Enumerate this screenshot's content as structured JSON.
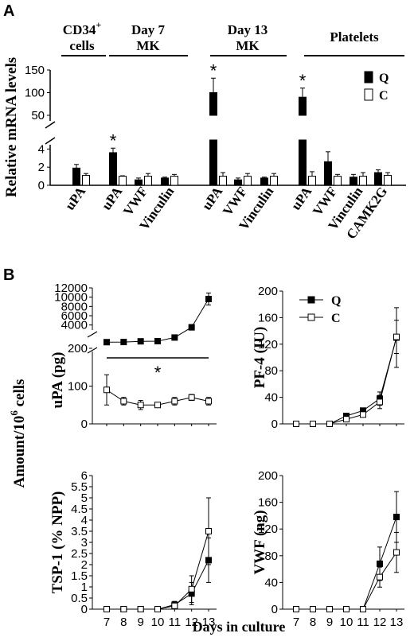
{
  "panel_a": {
    "letter": "A",
    "groups": [
      {
        "line1": "CD34",
        "sup": "+",
        "line2": "cells"
      },
      {
        "line1": "Day 7",
        "sup": "",
        "line2": "MK"
      },
      {
        "line1": "Day 13",
        "sup": "",
        "line2": "MK"
      },
      {
        "line1": "Platelets",
        "sup": "",
        "line2": ""
      }
    ],
    "legend": [
      {
        "name": "Q",
        "color": "#000000"
      },
      {
        "name": "C",
        "color": "#ffffff"
      }
    ]
  },
  "panel_b": {
    "letter": "B",
    "legend": [
      {
        "name": "Q",
        "marker": "filled-square"
      },
      {
        "name": "C",
        "marker": "open-square"
      }
    ]
  },
  "chart_data": [
    {
      "type": "bar",
      "panel": "A",
      "ylabel": "Relative mRNA levels",
      "y_break": true,
      "ylim_lower": [
        0,
        5
      ],
      "ylim_upper": [
        50,
        150
      ],
      "yticks_lower": [
        "0",
        "2",
        "4"
      ],
      "yticks_upper": [
        "50",
        "100",
        "150"
      ],
      "categories": [
        "uPA",
        "uPA",
        "VWF",
        "Vinculin",
        "uPA",
        "VWF",
        "Vinculin",
        "uPA",
        "VWF",
        "Vinculin",
        "CAMK2G"
      ],
      "category_groups": [
        0,
        1,
        1,
        1,
        2,
        2,
        2,
        3,
        3,
        3,
        3
      ],
      "series": [
        {
          "name": "Q",
          "values": [
            1.9,
            3.6,
            0.6,
            0.8,
            100,
            0.6,
            0.8,
            90,
            2.6,
            0.9,
            1.4
          ],
          "errors": [
            0.4,
            0.5,
            0.2,
            0.1,
            32,
            0.2,
            0.1,
            20,
            1.1,
            0.3,
            0.3
          ]
        },
        {
          "name": "C",
          "values": [
            1.1,
            1.0,
            1.0,
            1.0,
            1.0,
            1.0,
            1.0,
            1.0,
            1.0,
            1.0,
            1.1
          ],
          "errors": [
            0.2,
            0.05,
            0.3,
            0.2,
            0.4,
            0.3,
            0.3,
            0.5,
            0.2,
            0.4,
            0.3
          ]
        }
      ],
      "significance": [
        1,
        4,
        7
      ],
      "star_label": "*"
    },
    {
      "type": "line",
      "panel": "B",
      "ylabel": "uPA (pg)",
      "y_break": true,
      "ylim_lower": [
        0,
        200
      ],
      "ylim_upper": [
        0,
        12000
      ],
      "yticks_lower": [
        "0",
        "100",
        "200"
      ],
      "yticks_upper": [
        "4000",
        "6000",
        "8000",
        "10000",
        "12000"
      ],
      "x": [
        7,
        8,
        9,
        10,
        11,
        12,
        13
      ],
      "series": [
        {
          "name": "Q",
          "values": [
            300,
            330,
            480,
            520,
            1300,
            3500,
            9600
          ],
          "errors": [
            50,
            50,
            60,
            60,
            300,
            600,
            1300
          ]
        },
        {
          "name": "C",
          "values": [
            90,
            60,
            50,
            50,
            60,
            70,
            60
          ],
          "errors": [
            40,
            10,
            12,
            5,
            10,
            8,
            10
          ]
        }
      ],
      "star_label": "*"
    },
    {
      "type": "line",
      "panel": "B",
      "ylabel": "PF-4 (IU)",
      "ylim": [
        0,
        200
      ],
      "yticks": [
        "0",
        "40",
        "80",
        "120",
        "160",
        "200"
      ],
      "x": [
        7,
        8,
        9,
        10,
        11,
        12,
        13
      ],
      "series": [
        {
          "name": "Q",
          "values": [
            0,
            0,
            0,
            12,
            20,
            38,
            130
          ],
          "errors": [
            0,
            0,
            0,
            2,
            3,
            10,
            45
          ]
        },
        {
          "name": "C",
          "values": [
            0,
            0,
            0,
            7,
            14,
            33,
            131
          ],
          "errors": [
            0,
            0,
            0,
            2,
            3,
            10,
            25
          ]
        }
      ]
    },
    {
      "type": "line",
      "panel": "B",
      "ylabel": "TSP-1 (% NPP)",
      "ylim": [
        0,
        6
      ],
      "yticks": [
        "0",
        "0.5",
        "1",
        "1.5",
        "2",
        "2.5",
        "3",
        "3.5",
        "4",
        "4.5",
        "5",
        "5.5",
        "6"
      ],
      "x": [
        7,
        8,
        9,
        10,
        11,
        12,
        13
      ],
      "xticks": [
        "7",
        "8",
        "9",
        "10",
        "11",
        "12",
        "13"
      ],
      "series": [
        {
          "name": "Q",
          "values": [
            0,
            0,
            0,
            0,
            0.2,
            0.7,
            2.2
          ],
          "errors": [
            0,
            0,
            0,
            0,
            0.15,
            0.5,
            1.0
          ]
        },
        {
          "name": "C",
          "values": [
            0,
            0,
            0,
            0,
            0.15,
            0.9,
            3.5
          ],
          "errors": [
            0,
            0,
            0,
            0,
            0.1,
            0.6,
            1.5
          ]
        }
      ]
    },
    {
      "type": "line",
      "panel": "B",
      "ylabel": "VWF (ng)",
      "ylim": [
        0,
        200
      ],
      "yticks": [
        "0",
        "40",
        "80",
        "120",
        "160",
        "200"
      ],
      "x": [
        7,
        8,
        9,
        10,
        11,
        12,
        13
      ],
      "xticks": [
        "7",
        "8",
        "9",
        "10",
        "11",
        "12",
        "13"
      ],
      "series": [
        {
          "name": "Q",
          "values": [
            0,
            0,
            0,
            0,
            0,
            68,
            138
          ],
          "errors": [
            0,
            0,
            0,
            0,
            0,
            25,
            38
          ]
        },
        {
          "name": "C",
          "values": [
            0,
            0,
            0,
            0,
            0,
            48,
            85
          ],
          "errors": [
            0,
            0,
            0,
            0,
            0,
            15,
            30
          ]
        }
      ]
    }
  ],
  "shared_labels": {
    "b_ylabel_main": "Amount/10",
    "b_ylabel_sup": "6",
    "b_ylabel_tail": " cells",
    "b_xlabel": "Days in culture"
  }
}
